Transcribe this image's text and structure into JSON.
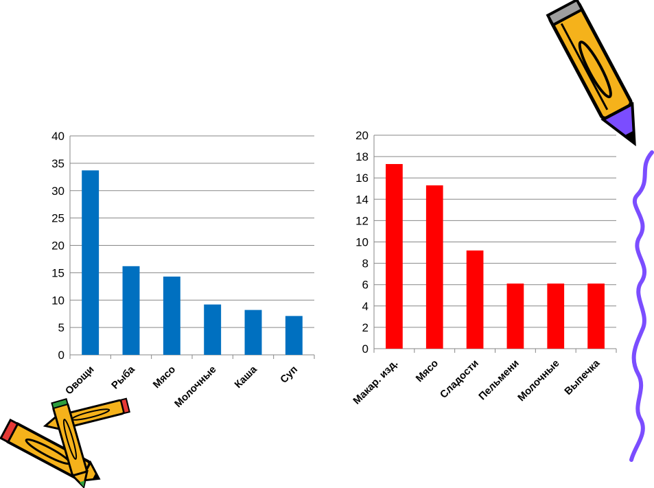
{
  "colors": {
    "series_left": "#0070C0",
    "series_right": "#FF0000",
    "grid": "#868686",
    "squiggle": "#7B4DFF",
    "pencil_body": "#F5B21B"
  },
  "decorations": [
    "pencil-icon",
    "pencils-icon",
    "squiggle-line"
  ],
  "chart_data": [
    {
      "type": "bar",
      "categories": [
        "Овощи",
        "Рыба",
        "Мясо",
        "Молочные",
        "Каша",
        "Суп"
      ],
      "values": [
        33.7,
        16.2,
        14.3,
        9.2,
        8.2,
        7.1
      ],
      "ylim": [
        0,
        40
      ],
      "yticks": [
        0,
        5,
        10,
        15,
        20,
        25,
        30,
        35,
        40
      ],
      "title": "",
      "xlabel": "",
      "ylabel": "",
      "grid": true,
      "legend": "none"
    },
    {
      "type": "bar",
      "categories": [
        "Макар. изд.",
        "Мясо",
        "Сладости",
        "Пельмени",
        "Молочные",
        "Выпечка"
      ],
      "values": [
        17.3,
        15.3,
        9.2,
        6.1,
        6.1,
        6.1
      ],
      "ylim": [
        0,
        20
      ],
      "yticks": [
        0,
        2,
        4,
        6,
        8,
        10,
        12,
        14,
        16,
        18,
        20
      ],
      "title": "",
      "xlabel": "",
      "ylabel": "",
      "grid": true,
      "legend": "none"
    }
  ]
}
